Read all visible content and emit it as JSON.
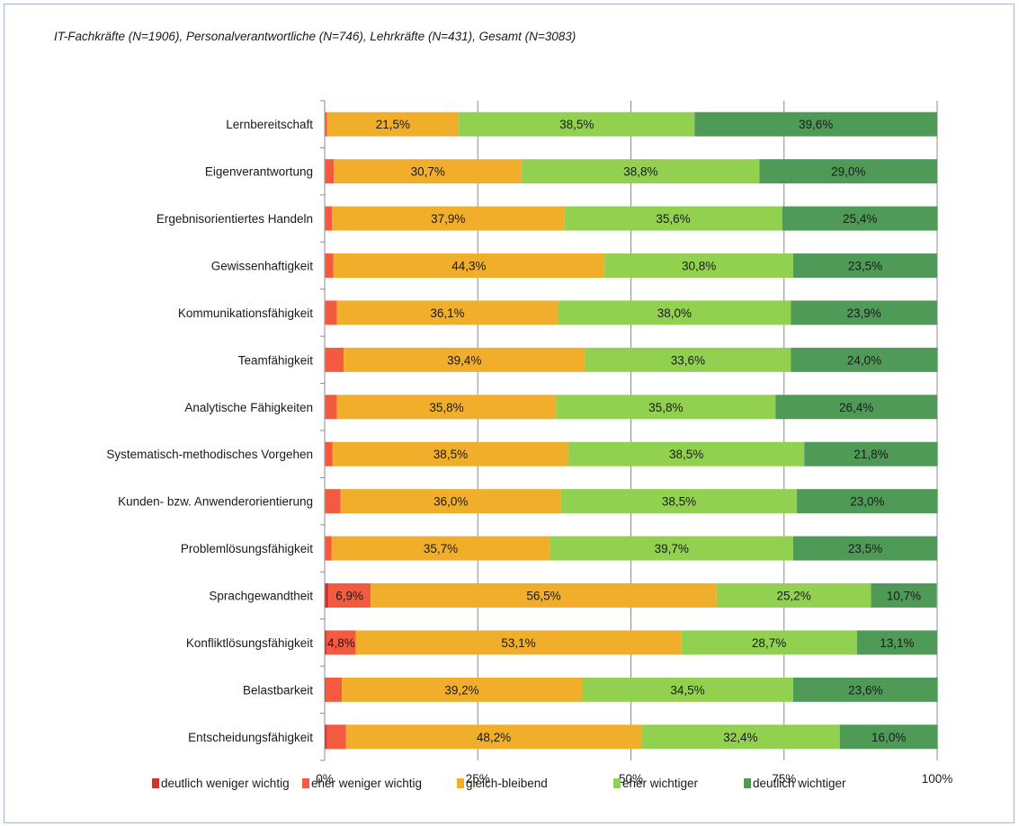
{
  "subtitle": "IT-Fachkräfte (N=1906), Personalverantwortliche (N=746), Lehrkräfte (N=431), Gesamt (N=3083)",
  "colors": {
    "deutlich_weniger": "#d7312d",
    "eher_weniger": "#f45a3f",
    "gleich": "#f0ae2a",
    "eher_wichtiger": "#92d050",
    "deutlich_wichtiger": "#4f9a57",
    "grid": "#8c8c8c",
    "frame_border": "#9fb6d4"
  },
  "chart_data": {
    "type": "bar",
    "orientation": "horizontal",
    "stacked": true,
    "percent_scale": true,
    "title": "",
    "xlabel": "",
    "ylabel": "",
    "xlim": [
      0,
      100
    ],
    "x_ticks": [
      "0%",
      "25%",
      "50%",
      "75%",
      "100%"
    ],
    "grid": true,
    "legend_position": "bottom",
    "categories": [
      "Lernbereitschaft",
      "Eigenverantwortung",
      "Ergebnisorientiertes Handeln",
      "Gewissenhaftigkeit",
      "Kommunikationsfähigkeit",
      "Teamfähigkeit",
      "Analytische Fähigkeiten",
      "Systematisch-methodisches Vorgehen",
      "Kunden- bzw. Anwenderorientierung",
      "Problemlösungsfähigkeit",
      "Sprachgewandtheit",
      "Konfliktlösungsfähigkeit",
      "Belastbarkeit",
      "Entscheidungsfähigkeit"
    ],
    "series": [
      {
        "name": "deutlich weniger wichtig",
        "color": "#d7312d",
        "values": [
          0.1,
          0.1,
          0.1,
          0.1,
          0.1,
          0.1,
          0.1,
          0.1,
          0.1,
          0.1,
          0.6,
          0.3,
          0.2,
          0.4
        ],
        "labels": [
          "",
          "",
          "",
          "",
          "",
          "",
          "",
          "",
          "",
          "",
          "",
          "",
          "",
          ""
        ]
      },
      {
        "name": "eher weniger wichtig",
        "color": "#f45a3f",
        "values": [
          0.3,
          1.4,
          1.1,
          1.3,
          1.9,
          3.0,
          1.9,
          1.2,
          2.5,
          1.0,
          6.9,
          4.8,
          2.6,
          3.1
        ],
        "labels": [
          "",
          "",
          "",
          "",
          "",
          "",
          "",
          "",
          "",
          "",
          "6,9%",
          "4,8%",
          "",
          ""
        ]
      },
      {
        "name": "gleich-bleibend",
        "color": "#f0ae2a",
        "values": [
          21.5,
          30.7,
          37.9,
          44.3,
          36.1,
          39.4,
          35.8,
          38.5,
          36.0,
          35.7,
          56.5,
          53.1,
          39.2,
          48.2
        ],
        "labels": [
          "21,5%",
          "30,7%",
          "37,9%",
          "44,3%",
          "36,1%",
          "39,4%",
          "35,8%",
          "38,5%",
          "36,0%",
          "35,7%",
          "56,5%",
          "53,1%",
          "39,2%",
          "48,2%"
        ]
      },
      {
        "name": "eher wichtiger",
        "color": "#92d050",
        "values": [
          38.5,
          38.8,
          35.6,
          30.8,
          38.0,
          33.6,
          35.8,
          38.5,
          38.5,
          39.7,
          25.2,
          28.7,
          34.5,
          32.4
        ],
        "labels": [
          "38,5%",
          "38,8%",
          "35,6%",
          "30,8%",
          "38,0%",
          "33,6%",
          "35,8%",
          "38,5%",
          "38,5%",
          "39,7%",
          "25,2%",
          "28,7%",
          "34,5%",
          "32,4%"
        ]
      },
      {
        "name": "deutlich wichtiger",
        "color": "#4f9a57",
        "values": [
          39.6,
          29.0,
          25.4,
          23.5,
          23.9,
          24.0,
          26.4,
          21.8,
          23.0,
          23.5,
          10.7,
          13.1,
          23.6,
          16.0
        ],
        "labels": [
          "39,6%",
          "29,0%",
          "25,4%",
          "23,5%",
          "23,9%",
          "24,0%",
          "26,4%",
          "21,8%",
          "23,0%",
          "23,5%",
          "10,7%",
          "13,1%",
          "23,6%",
          "16,0%"
        ]
      }
    ]
  }
}
